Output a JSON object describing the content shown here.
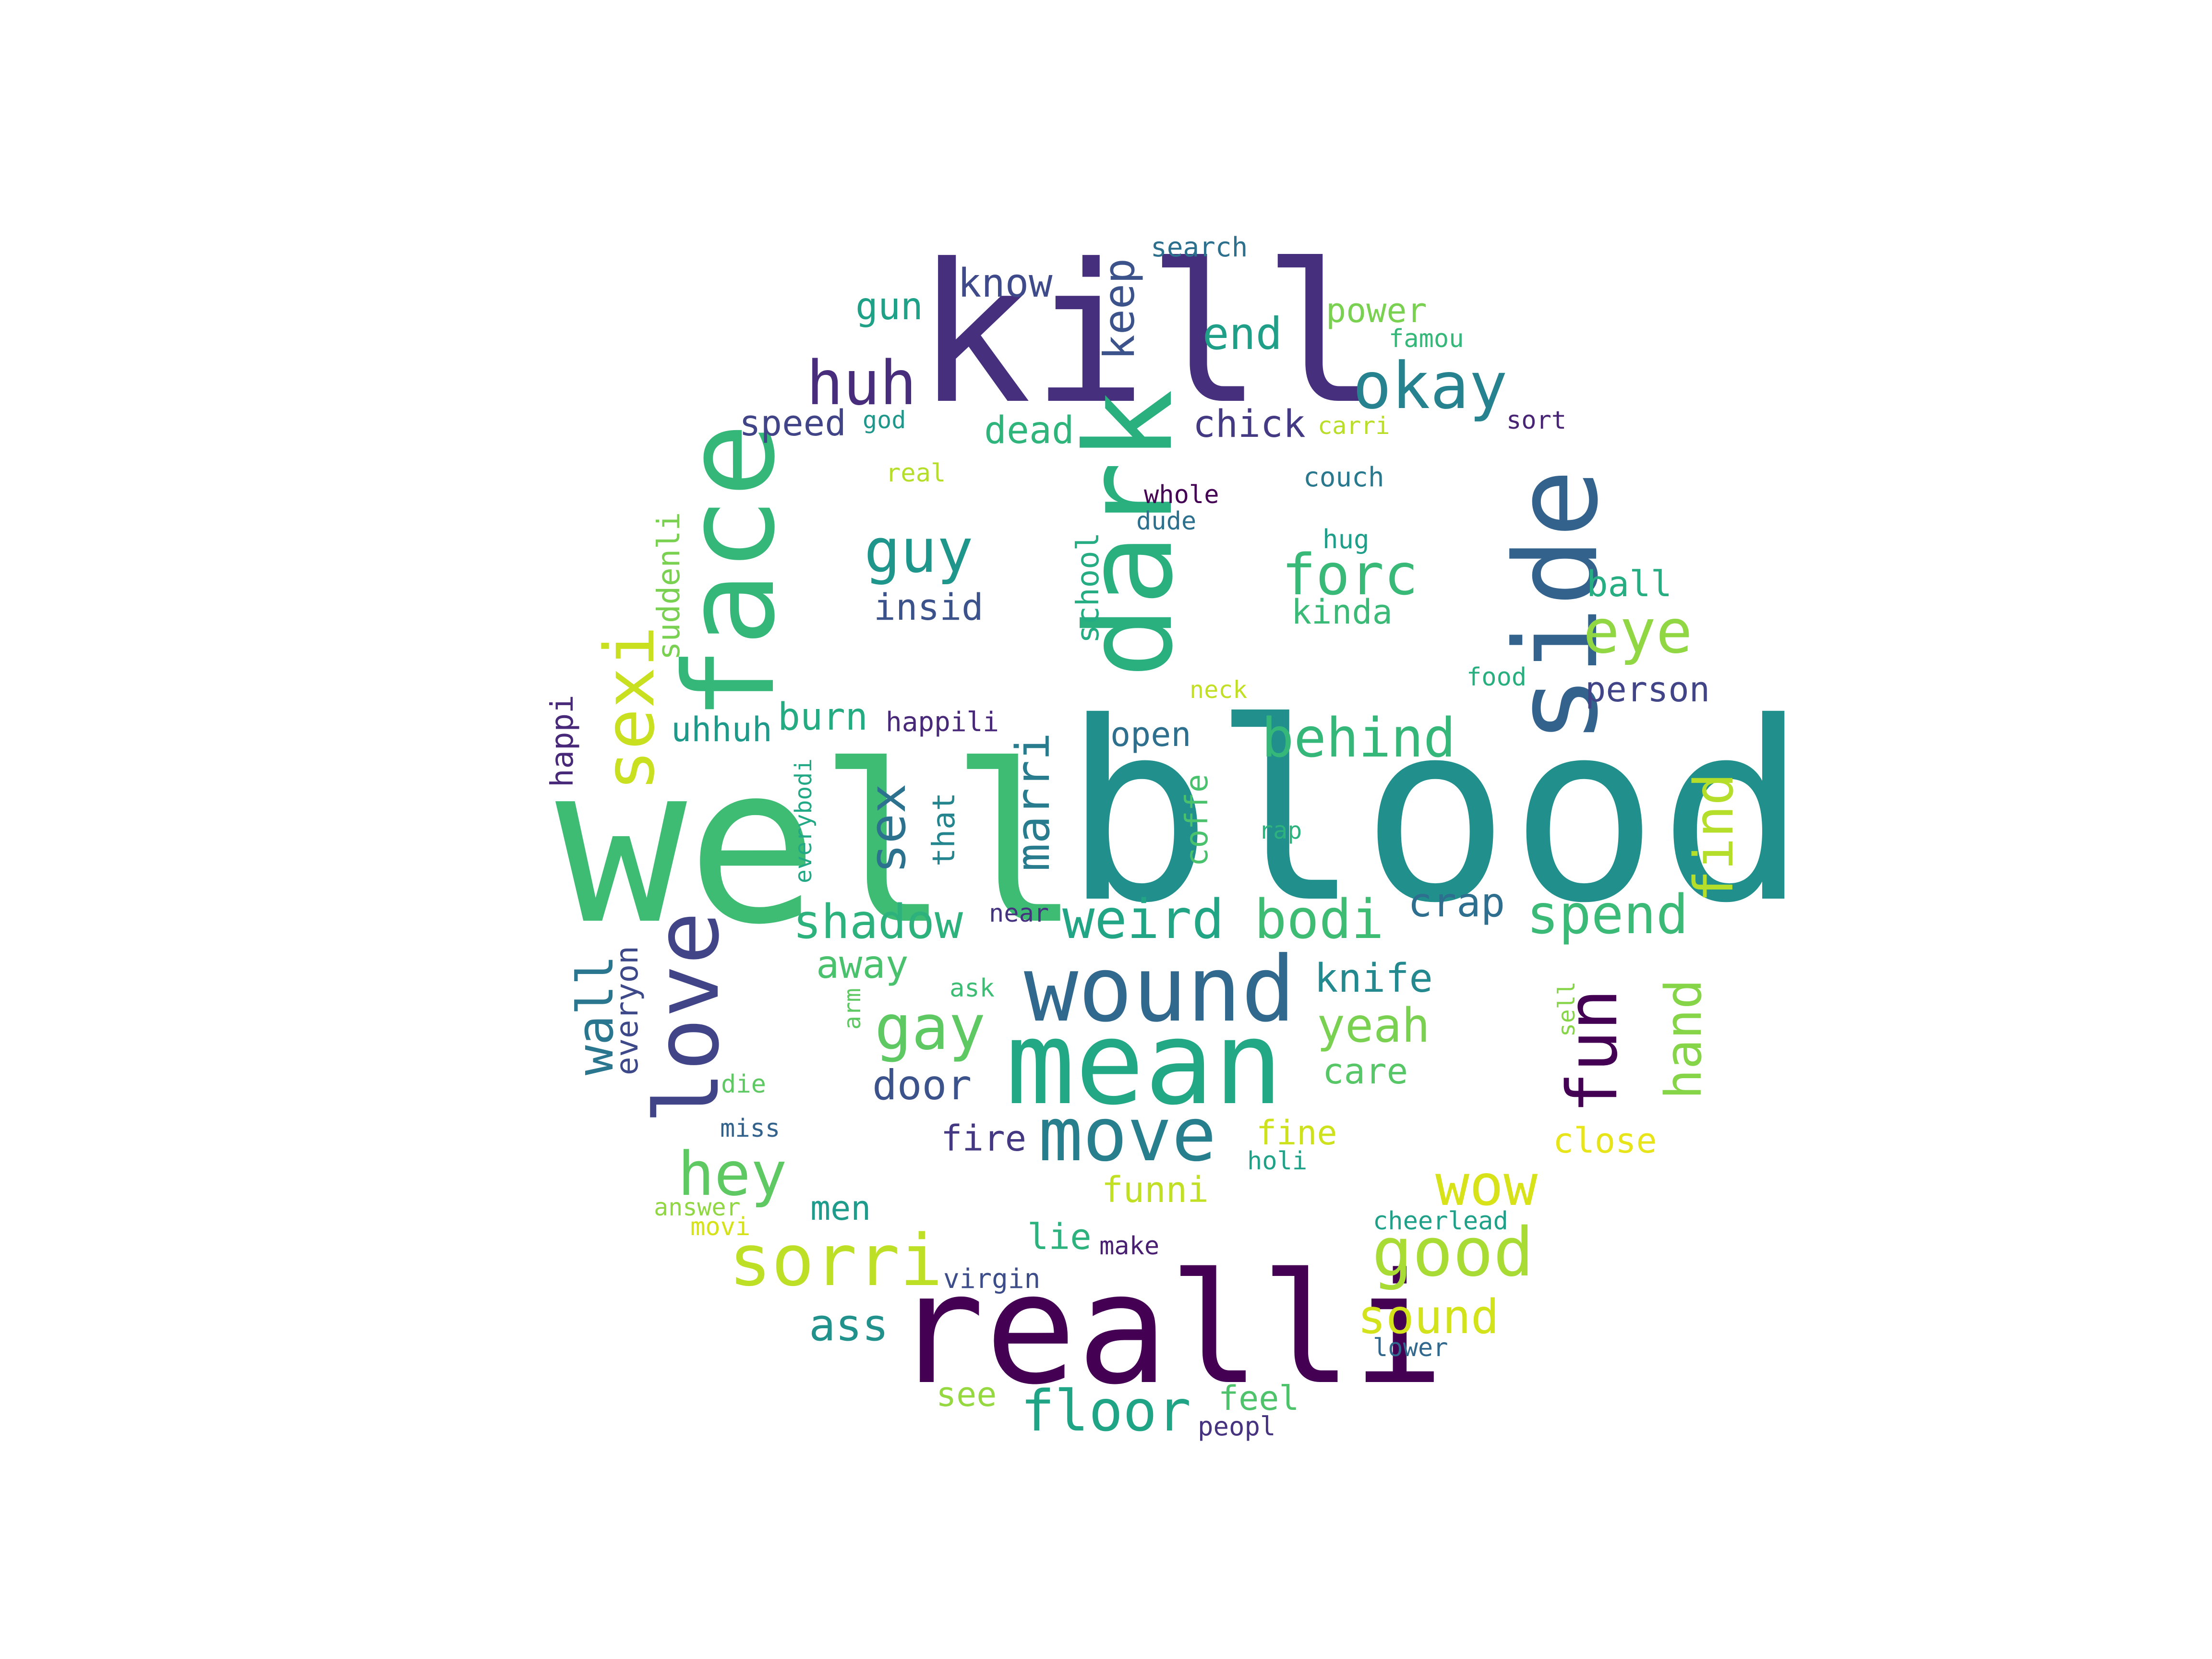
{
  "words": [
    {
      "id": "well",
      "text": "well",
      "color": "#3fbc73"
    },
    {
      "id": "blood",
      "text": "blood",
      "color": "#21908d"
    },
    {
      "id": "kill",
      "text": "kill",
      "color": "#46307e"
    },
    {
      "id": "face",
      "text": "face",
      "color": "#35b779"
    },
    {
      "id": "dark",
      "text": "dark",
      "color": "#2ab07f"
    },
    {
      "id": "side",
      "text": "side",
      "color": "#33638d"
    },
    {
      "id": "realli",
      "text": "realli",
      "color": "#440154"
    },
    {
      "id": "mean",
      "text": "mean",
      "color": "#22a884"
    },
    {
      "id": "wound",
      "text": "wound",
      "color": "#31688e"
    },
    {
      "id": "love",
      "text": "love",
      "color": "#414487"
    },
    {
      "id": "sexi",
      "text": "sexi",
      "color": "#c8e020"
    },
    {
      "id": "move",
      "text": "move",
      "color": "#277f8e"
    },
    {
      "id": "sorri",
      "text": "sorri",
      "color": "#bddf26"
    },
    {
      "id": "fun",
      "text": "fun",
      "color": "#440154"
    },
    {
      "id": "okay",
      "text": "okay",
      "color": "#26828e"
    },
    {
      "id": "huh",
      "text": "huh",
      "color": "#472d7b"
    },
    {
      "id": "good",
      "text": "good",
      "color": "#a8db34"
    },
    {
      "id": "hey",
      "text": "hey",
      "color": "#5ec962"
    },
    {
      "id": "floor",
      "text": "floor",
      "color": "#20a486"
    },
    {
      "id": "gay",
      "text": "gay",
      "color": "#5ec962"
    },
    {
      "id": "wow",
      "text": "wow",
      "color": "#d8e219"
    },
    {
      "id": "behind",
      "text": "behind",
      "color": "#35b779"
    },
    {
      "id": "weird",
      "text": "weird",
      "color": "#21a585"
    },
    {
      "id": "bodi",
      "text": "bodi",
      "color": "#3fbc73"
    },
    {
      "id": "spend",
      "text": "spend",
      "color": "#3aba76"
    },
    {
      "id": "find",
      "text": "find",
      "color": "#b5de2b"
    },
    {
      "id": "eye",
      "text": "eye",
      "color": "#90d743"
    },
    {
      "id": "forc",
      "text": "forc",
      "color": "#38b977"
    },
    {
      "id": "guy",
      "text": "guy",
      "color": "#1f968b"
    },
    {
      "id": "shadow",
      "text": "shadow",
      "color": "#2db27d"
    },
    {
      "id": "hand",
      "text": "hand",
      "color": "#86d549"
    },
    {
      "id": "sex",
      "text": "sex",
      "color": "#2c728e"
    },
    {
      "id": "marri",
      "text": "marri",
      "color": "#287c8e"
    },
    {
      "id": "wall",
      "text": "wall",
      "color": "#2a768e"
    },
    {
      "id": "yeah",
      "text": "yeah",
      "color": "#7ad151"
    },
    {
      "id": "sound",
      "text": "sound",
      "color": "#d2e21b"
    },
    {
      "id": "ass",
      "text": "ass",
      "color": "#21918c"
    },
    {
      "id": "end",
      "text": "end",
      "color": "#1f9f88"
    },
    {
      "id": "keep",
      "text": "keep",
      "color": "#3b528b"
    },
    {
      "id": "door",
      "text": "door",
      "color": "#3b528b"
    },
    {
      "id": "knife",
      "text": "knife",
      "color": "#23898e"
    },
    {
      "id": "crap",
      "text": "crap",
      "color": "#2e6e8e"
    },
    {
      "id": "know",
      "text": "know",
      "color": "#3e4a89"
    },
    {
      "id": "gun",
      "text": "gun",
      "color": "#1fa187"
    },
    {
      "id": "dead",
      "text": "dead",
      "color": "#2fb47c"
    },
    {
      "id": "chick",
      "text": "chick",
      "color": "#443983"
    },
    {
      "id": "speed",
      "text": "speed",
      "color": "#414487"
    },
    {
      "id": "burn",
      "text": "burn",
      "color": "#25ab82"
    },
    {
      "id": "insid",
      "text": "insid",
      "color": "#3b528b"
    },
    {
      "id": "kinda",
      "text": "kinda",
      "color": "#3aba76"
    },
    {
      "id": "ball",
      "text": "ball",
      "color": "#26ad81"
    },
    {
      "id": "person",
      "text": "person",
      "color": "#414487"
    },
    {
      "id": "away",
      "text": "away",
      "color": "#4ac16d"
    },
    {
      "id": "uhhuh",
      "text": "uhhuh",
      "color": "#1f9a8a"
    },
    {
      "id": "open",
      "text": "open",
      "color": "#2e6f8e"
    },
    {
      "id": "care",
      "text": "care",
      "color": "#56c667"
    },
    {
      "id": "fire",
      "text": "fire",
      "color": "#453882"
    },
    {
      "id": "funni",
      "text": "funni",
      "color": "#c0df25"
    },
    {
      "id": "close",
      "text": "close",
      "color": "#e7e419"
    },
    {
      "id": "fine",
      "text": "fine",
      "color": "#cde11d"
    },
    {
      "id": "lie",
      "text": "lie",
      "color": "#2db27d"
    },
    {
      "id": "men",
      "text": "men",
      "color": "#1e9b8a"
    },
    {
      "id": "see",
      "text": "see",
      "color": "#95d840"
    },
    {
      "id": "feel",
      "text": "feel",
      "color": "#4ec36b"
    },
    {
      "id": "power",
      "text": "power",
      "color": "#7ad151"
    },
    {
      "id": "school",
      "text": "school",
      "color": "#25ac82"
    },
    {
      "id": "suddenli",
      "text": "suddenli",
      "color": "#7ad151"
    },
    {
      "id": "coffe",
      "text": "coffe",
      "color": "#4ac16d"
    },
    {
      "id": "that",
      "text": "that",
      "color": "#25858e"
    },
    {
      "id": "happi",
      "text": "happi",
      "color": "#482878"
    },
    {
      "id": "everyon",
      "text": "everyon",
      "color": "#3e4989"
    },
    {
      "id": "search",
      "text": "search",
      "color": "#2d708e"
    },
    {
      "id": "famou",
      "text": "famou",
      "color": "#35b779"
    },
    {
      "id": "sort",
      "text": "sort",
      "color": "#482475"
    },
    {
      "id": "god",
      "text": "god",
      "color": "#1f988b"
    },
    {
      "id": "carri",
      "text": "carri",
      "color": "#b8de29"
    },
    {
      "id": "real",
      "text": "real",
      "color": "#b5de2b"
    },
    {
      "id": "couch",
      "text": "couch",
      "color": "#2a788e"
    },
    {
      "id": "whole",
      "text": "whole",
      "color": "#440154"
    },
    {
      "id": "dude",
      "text": "dude",
      "color": "#2d708e"
    },
    {
      "id": "hug",
      "text": "hug",
      "color": "#1f9e89"
    },
    {
      "id": "neck",
      "text": "neck",
      "color": "#c2df23"
    },
    {
      "id": "food",
      "text": "food",
      "color": "#29af7f"
    },
    {
      "id": "happili",
      "text": "happili",
      "color": "#482878"
    },
    {
      "id": "everybodi",
      "text": "everybodi",
      "color": "#22a884"
    },
    {
      "id": "rap",
      "text": "rap",
      "color": "#2db27d"
    },
    {
      "id": "near",
      "text": "near",
      "color": "#46337f"
    },
    {
      "id": "ask",
      "text": "ask",
      "color": "#3dbc74"
    },
    {
      "id": "arm",
      "text": "arm",
      "color": "#5ec962"
    },
    {
      "id": "sell",
      "text": "sell",
      "color": "#86d549"
    },
    {
      "id": "holi",
      "text": "holi",
      "color": "#1fa287"
    },
    {
      "id": "cheerlead",
      "text": "cheerlead",
      "color": "#1fa088"
    },
    {
      "id": "make",
      "text": "make",
      "color": "#481f71"
    },
    {
      "id": "virgin",
      "text": "virgin",
      "color": "#3d4d8a"
    },
    {
      "id": "die",
      "text": "die",
      "color": "#5ec962"
    },
    {
      "id": "miss",
      "text": "miss",
      "color": "#33638d"
    },
    {
      "id": "answer",
      "text": "answer",
      "color": "#90d743"
    },
    {
      "id": "movi",
      "text": "movi",
      "color": "#d5e21a"
    },
    {
      "id": "lower",
      "text": "lower",
      "color": "#31688e"
    },
    {
      "id": "peopl",
      "text": "peopl",
      "color": "#46337f"
    }
  ]
}
